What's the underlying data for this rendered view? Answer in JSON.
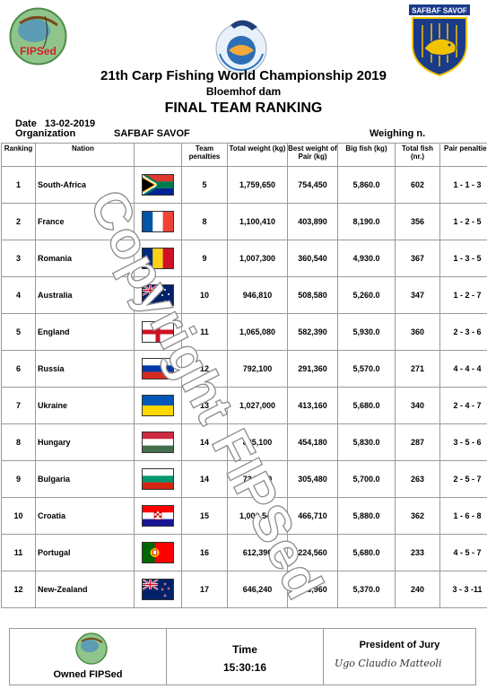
{
  "header": {
    "logo_left_text": "FIPSed",
    "logo_right_text": "SAFBAF SAVOF",
    "title": "21th Carp Fishing World Championship 2019",
    "venue": "Bloemhof dam",
    "subtitle": "FINAL TEAM RANKING",
    "date_label": "Date",
    "date_value": "13-02-2019",
    "organization_label": "Organization",
    "organization_value": "SAFBAF SAVOF",
    "weighing_label": "Weighing n."
  },
  "table": {
    "columns": [
      "Ranking",
      "Nation",
      "Team penalties",
      "Total weight (kg)",
      "Best weight of Pair (kg)",
      "Big fish (kg)",
      "Total fish (nr.)",
      "Pair penalties"
    ],
    "rows": [
      {
        "rank": "1",
        "nation": "South-Africa",
        "flag": "south-africa-flag",
        "penalties": "5",
        "total_weight": "1,759,650",
        "best_pair": "754,450",
        "big_fish": "5,860.0",
        "total_fish": "602",
        "pair_penalties": "1 - 1 - 3"
      },
      {
        "rank": "2",
        "nation": "France",
        "flag": "france-flag",
        "penalties": "8",
        "total_weight": "1,100,410",
        "best_pair": "403,890",
        "big_fish": "8,190.0",
        "total_fish": "356",
        "pair_penalties": "1 - 2 - 5"
      },
      {
        "rank": "3",
        "nation": "Romania",
        "flag": "romania-flag",
        "penalties": "9",
        "total_weight": "1,007,300",
        "best_pair": "360,540",
        "big_fish": "4,930.0",
        "total_fish": "367",
        "pair_penalties": "1 - 3 - 5"
      },
      {
        "rank": "4",
        "nation": "Australia",
        "flag": "australia-flag",
        "penalties": "10",
        "total_weight": "946,810",
        "best_pair": "508,580",
        "big_fish": "5,260.0",
        "total_fish": "347",
        "pair_penalties": "1 - 2 - 7"
      },
      {
        "rank": "5",
        "nation": "England",
        "flag": "england-flag",
        "penalties": "11",
        "total_weight": "1,065,080",
        "best_pair": "582,390",
        "big_fish": "5,930.0",
        "total_fish": "360",
        "pair_penalties": "2 - 3 - 6"
      },
      {
        "rank": "6",
        "nation": "Russia",
        "flag": "russia-flag",
        "penalties": "12",
        "total_weight": "792,100",
        "best_pair": "291,360",
        "big_fish": "5,570.0",
        "total_fish": "271",
        "pair_penalties": "4 - 4 - 4"
      },
      {
        "rank": "7",
        "nation": "Ukraine",
        "flag": "ukraine-flag",
        "penalties": "13",
        "total_weight": "1,027,000",
        "best_pair": "413,160",
        "big_fish": "5,680.0",
        "total_fish": "340",
        "pair_penalties": "2 - 4 - 7"
      },
      {
        "rank": "8",
        "nation": "Hungary",
        "flag": "hungary-flag",
        "penalties": "14",
        "total_weight": "825,100",
        "best_pair": "454,180",
        "big_fish": "5,830.0",
        "total_fish": "287",
        "pair_penalties": "3 - 5 - 6"
      },
      {
        "rank": "9",
        "nation": "Bulgaria",
        "flag": "bulgaria-flag",
        "penalties": "14",
        "total_weight": "734,510",
        "best_pair": "305,480",
        "big_fish": "5,700.0",
        "total_fish": "263",
        "pair_penalties": "2 - 5 - 7"
      },
      {
        "rank": "10",
        "nation": "Croatia",
        "flag": "croatia-flag",
        "penalties": "15",
        "total_weight": "1,000,540",
        "best_pair": "466,710",
        "big_fish": "5,880.0",
        "total_fish": "362",
        "pair_penalties": "1 - 6 - 8"
      },
      {
        "rank": "11",
        "nation": "Portugal",
        "flag": "portugal-flag",
        "penalties": "16",
        "total_weight": "612,390",
        "best_pair": "224,560",
        "big_fish": "5,680.0",
        "total_fish": "233",
        "pair_penalties": "4 - 5 - 7"
      },
      {
        "rank": "12",
        "nation": "New-Zealand",
        "flag": "new-zealand-flag",
        "penalties": "17",
        "total_weight": "646,240",
        "best_pair": "323,960",
        "big_fish": "5,370.0",
        "total_fish": "240",
        "pair_penalties": "3 - 3 -11"
      }
    ]
  },
  "footer": {
    "owned_label": "Owned FIPSed",
    "time_label": "Time",
    "time_value": "15:30:16",
    "president_label": "President of Jury",
    "signature_text": "Ugo Claudio Matteoli"
  },
  "watermark": "Copyright FIPSed"
}
